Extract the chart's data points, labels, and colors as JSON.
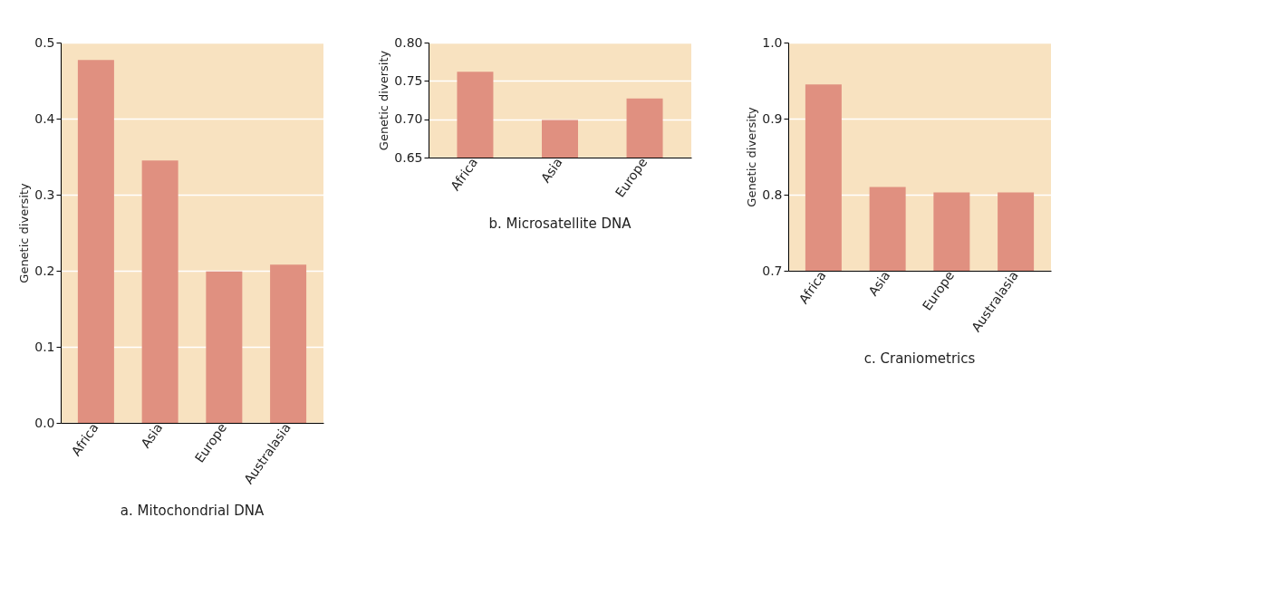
{
  "chart_data": [
    {
      "type": "bar",
      "title": "a. Mitochondrial DNA",
      "ylabel": "Genetic diversity",
      "categories": [
        "Africa",
        "Asia",
        "Europe",
        "Australasia"
      ],
      "values": [
        0.477,
        0.345,
        0.199,
        0.208
      ],
      "color": "#e09080",
      "ylim": [
        0,
        0.5
      ],
      "yticks": [
        {
          "value": 0,
          "label": "0.0"
        },
        0.1,
        0.2,
        0.3,
        0.4,
        0.5
      ],
      "grid": "y"
    },
    {
      "type": "bar",
      "title": "b. Microsatellite DNA",
      "ylabel": "Genetic diversity",
      "categories": [
        "Africa",
        "Asia",
        "Europe"
      ],
      "values": [
        0.762,
        0.699,
        0.727
      ],
      "color": "#e09080",
      "ylim": [
        0.65,
        0.8
      ],
      "yticks": [
        0.65,
        {
          "value": 0.7,
          "label": "0.70"
        },
        0.75,
        {
          "value": 0.8,
          "label": "0.80"
        }
      ],
      "grid": "y"
    },
    {
      "type": "bar",
      "title": "c. Craniometrics",
      "ylabel": "Genetic diversity",
      "categories": [
        "Africa",
        "Asia",
        "Europe",
        "Australasia"
      ],
      "values": [
        0.945,
        0.81,
        0.803,
        0.803
      ],
      "color": "#e09080",
      "ylim": [
        0.7,
        1.0
      ],
      "yticks": [
        0.7,
        0.8,
        0.9,
        {
          "value": 1.0,
          "label": "1.0"
        }
      ],
      "grid": "y"
    }
  ]
}
